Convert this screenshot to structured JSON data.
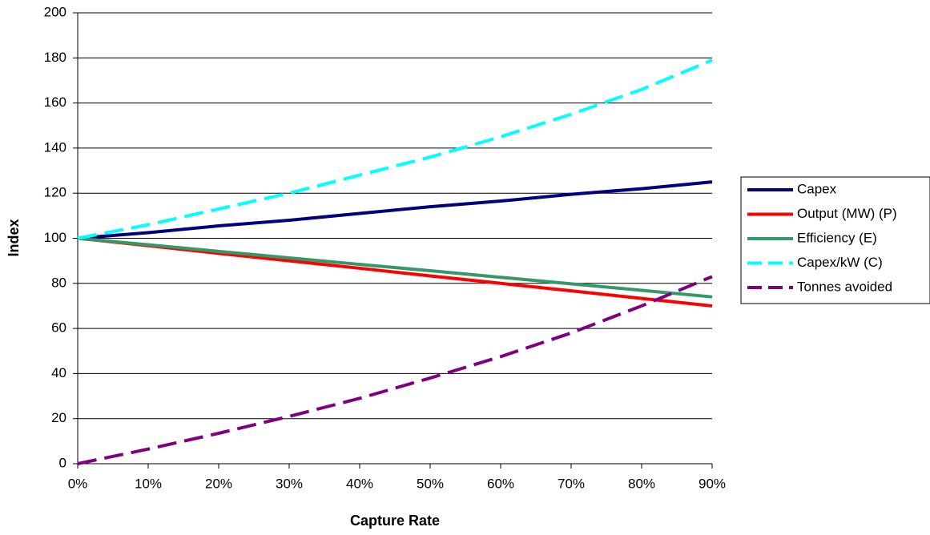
{
  "chart_data": {
    "type": "line",
    "x_label": "Capture Rate",
    "y_label": "Index",
    "x": [
      0,
      10,
      20,
      30,
      40,
      50,
      60,
      70,
      80,
      90
    ],
    "xlim": [
      0,
      90
    ],
    "xticks": [
      {
        "value": 0,
        "label": "0%"
      },
      {
        "value": 10,
        "label": "10%"
      },
      {
        "value": 20,
        "label": "20%"
      },
      {
        "value": 30,
        "label": "30%"
      },
      {
        "value": 40,
        "label": "40%"
      },
      {
        "value": 50,
        "label": "50%"
      },
      {
        "value": 60,
        "label": "60%"
      },
      {
        "value": 70,
        "label": "70%"
      },
      {
        "value": 80,
        "label": "80%"
      },
      {
        "value": 90,
        "label": "90%"
      }
    ],
    "ylim": [
      0,
      200
    ],
    "yticks": [
      0,
      20,
      40,
      60,
      80,
      100,
      120,
      140,
      160,
      180,
      200
    ],
    "grid": true,
    "legend": "right",
    "series": [
      {
        "name": "Capex",
        "color": "#000080",
        "style": "solid",
        "values": [
          100,
          102.5,
          105.5,
          108,
          111,
          114,
          116.5,
          119.5,
          122,
          125
        ]
      },
      {
        "name": "Output (MW) (P)",
        "color": "#ff0000",
        "style": "solid",
        "values": [
          100,
          96.7,
          93.3,
          90,
          86.7,
          83.3,
          80,
          76.7,
          73.3,
          70
        ]
      },
      {
        "name": "Efficiency (E)",
        "color": "#339966",
        "style": "solid",
        "values": [
          100,
          97.1,
          94.2,
          91.3,
          88.4,
          85.6,
          82.7,
          79.8,
          76.9,
          74
        ]
      },
      {
        "name": "Capex/kW (C)",
        "color": "#00ffff",
        "style": "dashed",
        "values": [
          100,
          106,
          113,
          120,
          128,
          136,
          145,
          155,
          166,
          179
        ]
      },
      {
        "name": "Tonnes avoided",
        "color": "#800080",
        "style": "dashed",
        "values": [
          0,
          6.5,
          13.5,
          21,
          29,
          38,
          47.5,
          58,
          70,
          83
        ]
      }
    ]
  }
}
